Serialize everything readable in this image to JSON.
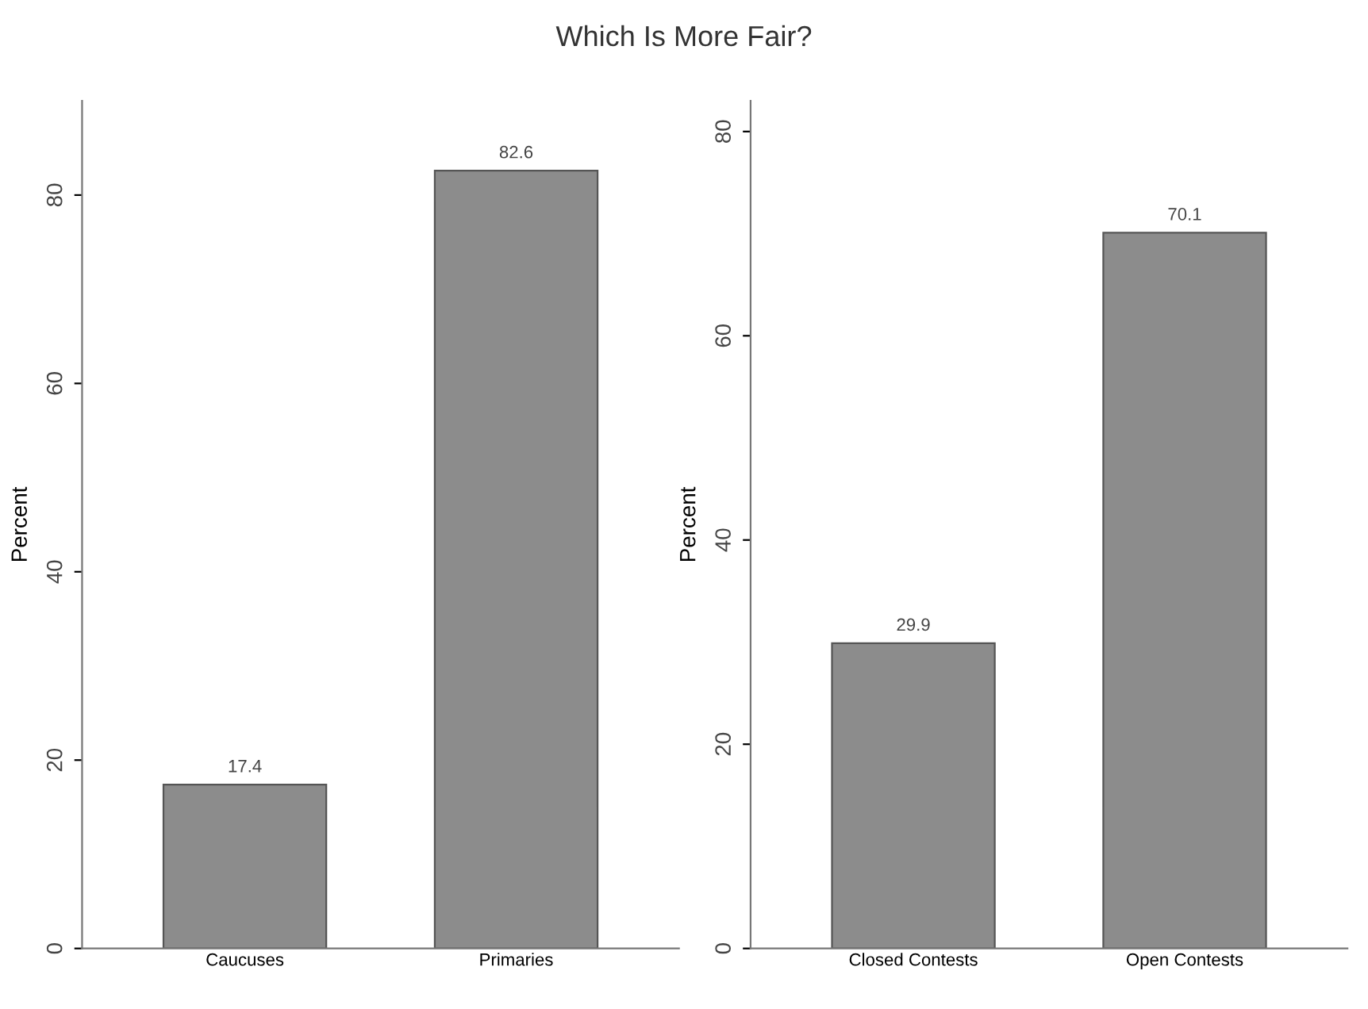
{
  "chart_data": [
    {
      "type": "bar",
      "title": "Which Is More Fair?",
      "ylabel": "Percent",
      "categories": [
        "Caucuses",
        "Primaries"
      ],
      "values": [
        17.4,
        82.6
      ],
      "color": "#8c8c8c",
      "ylim": [
        0,
        90
      ],
      "yticks": [
        0,
        20,
        40,
        60,
        80
      ],
      "data_labels": true,
      "grid": false,
      "legend": false
    },
    {
      "type": "bar",
      "ylabel": "Percent",
      "categories": [
        "Closed Contests",
        "Open Contests"
      ],
      "values": [
        29.9,
        70.1
      ],
      "color": "#8c8c8c",
      "ylim": [
        0,
        83
      ],
      "yticks": [
        0,
        20,
        40,
        60,
        80
      ],
      "data_labels": true,
      "grid": false,
      "legend": false
    }
  ]
}
